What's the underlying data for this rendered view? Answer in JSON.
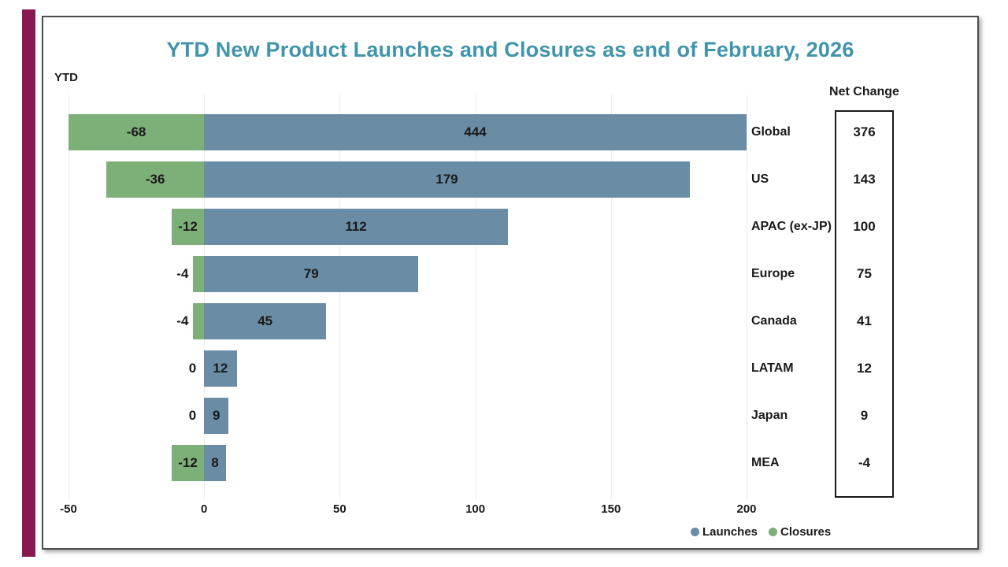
{
  "title": "YTD New Product Launches and Closures as end of February, 2026",
  "axis_corner_label": "YTD",
  "net_change_header": "Net Change",
  "colors": {
    "accent_strip": "#871850",
    "title": "#4095aa",
    "launches": "#6a8ca4",
    "closures": "#7daf78",
    "text": "#1a1a1a",
    "gridline": "#ebebeb"
  },
  "legend": [
    {
      "label": "Launches",
      "color": "#6a8ca4"
    },
    {
      "label": "Closures",
      "color": "#7daf78"
    }
  ],
  "chart_data": {
    "type": "bar",
    "orientation": "horizontal",
    "title": "YTD New Product Launches and Closures as end of February, 2026",
    "categories": [
      "Global",
      "US",
      "APAC (ex-JP)",
      "Europe",
      "Canada",
      "LATAM",
      "Japan",
      "MEA"
    ],
    "series": [
      {
        "name": "Launches",
        "color": "#6a8ca4",
        "values": [
          444,
          179,
          112,
          79,
          45,
          12,
          9,
          8
        ]
      },
      {
        "name": "Closures",
        "color": "#7daf78",
        "values": [
          -68,
          -36,
          -12,
          -4,
          -4,
          0,
          0,
          -12
        ]
      }
    ],
    "net_change": [
      376,
      143,
      100,
      75,
      41,
      12,
      9,
      -4
    ],
    "xlim": [
      -50,
      200
    ],
    "xticks": [
      -50,
      0,
      50,
      100,
      150,
      200
    ],
    "grid": true,
    "bars_clipped_at_axis_limits": true,
    "legend_position": "bottom-right"
  }
}
